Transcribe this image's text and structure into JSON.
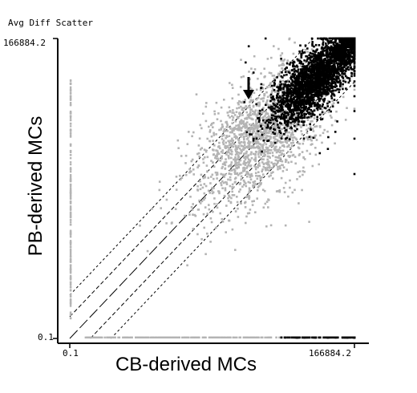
{
  "chart_data": {
    "type": "scatter",
    "title": "Avg Diff Scatter",
    "xlabel": "CB-derived MCs",
    "ylabel": "PB-derived MCs",
    "x_tick_labels": [
      "0.1",
      "166884.2"
    ],
    "y_tick_labels": [
      "0.1",
      "166884.2"
    ],
    "xlim": [
      0.1,
      166884.2
    ],
    "ylim": [
      0.1,
      166884.2
    ],
    "scale": "log",
    "grid": false,
    "legend": "none",
    "reference_lines": [
      "y = x",
      "fold-change bounds above and below the diagonal"
    ],
    "annotations": [
      "downward arrow above the dense black cloud"
    ],
    "series": [
      {
        "color": "#000000",
        "description": "black points, concentrated near the upper-right diagonal",
        "distribution": "dense cluster near log10 3.7–4.9 on both axes, extending to the maximum value"
      },
      {
        "color": "#b4b4b4",
        "description": "gray points, spread in the middle of the plot",
        "distribution": "cloud near log10 2.5–4.0 on both axes, with points pinned to the lower axis and left axis"
      }
    ]
  },
  "colors": {
    "gray_points": "#b4b4b4",
    "black_points": "#000000",
    "axis": "#000000"
  }
}
